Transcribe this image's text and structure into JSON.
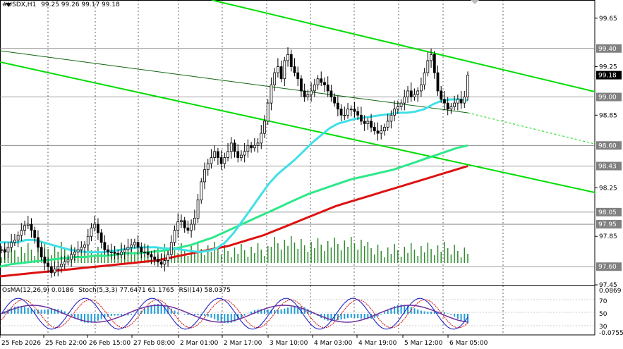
{
  "header": {
    "symbol": "#USDX,H1",
    "ohlc": "99.25 99.26 99.17 99.18"
  },
  "indicator_header": {
    "osma": "OsMA(12,26,9) 0.0186",
    "stoch": "Stoch(5,3,3) 77.6471 61.1765",
    "rsi": "RSI(14) 58.0375"
  },
  "colors": {
    "candle": "#000000",
    "volume": "#2e8b2e",
    "channel": "#00dd00",
    "ema_cyan": "#40e0e8",
    "ema_green": "#2ee88a",
    "ema_red": "#dd1111",
    "grid": "#000000",
    "osma": "#1e9bd7",
    "stoch_main": "#1010c0",
    "stoch_signal": "#d01010",
    "rsi": "#7030a0"
  },
  "chart_data": {
    "type": "candlestick",
    "title": "#USDX,H1",
    "x_tick_labels": [
      "25 Feb 2026",
      "25 Feb 22:00",
      "26 Feb 15:00",
      "27 Feb 08:00",
      "2 Mar 01:00",
      "2 Mar 17:00",
      "3 Mar 10:00",
      "4 Mar 03:00",
      "4 Mar 19:00",
      "5 Mar 12:00",
      "6 Mar 05:00"
    ],
    "y_tick_labels": [
      "99.65",
      "99.40",
      "99.25",
      "99.18",
      "99.00",
      "98.85",
      "98.60",
      "98.43",
      "98.25",
      "98.05",
      "97.95",
      "97.85",
      "97.60",
      "97.45"
    ],
    "price_labels": [
      {
        "value": 99.4,
        "text": "99.40",
        "color": "#808080"
      },
      {
        "value": 99.18,
        "text": "99.18",
        "color": "#000000"
      },
      {
        "value": 99.0,
        "text": "99.00",
        "color": "#808080"
      },
      {
        "value": 98.6,
        "text": "98.60",
        "color": "#808080"
      },
      {
        "value": 98.43,
        "text": "98.43",
        "color": "#808080"
      },
      {
        "value": 98.05,
        "text": "98.05",
        "color": "#808080"
      },
      {
        "value": 97.95,
        "text": "97.95",
        "color": "#808080"
      },
      {
        "value": 97.6,
        "text": "97.60",
        "color": "#808080"
      }
    ],
    "horizontal_levels": [
      99.4,
      99.0,
      98.6,
      98.43,
      98.05,
      97.95,
      97.6
    ],
    "ylim": [
      97.45,
      99.8
    ],
    "candles_close": [
      97.74,
      97.72,
      97.76,
      97.8,
      97.82,
      97.86,
      97.9,
      97.94,
      97.95,
      97.9,
      97.84,
      97.76,
      97.68,
      97.63,
      97.6,
      97.55,
      97.58,
      97.6,
      97.62,
      97.64,
      97.66,
      97.7,
      97.72,
      97.74,
      97.76,
      97.78,
      97.85,
      97.92,
      97.95,
      97.88,
      97.8,
      97.74,
      97.72,
      97.72,
      97.71,
      97.7,
      97.72,
      97.74,
      97.76,
      97.78,
      97.8,
      97.76,
      97.72,
      97.72,
      97.7,
      97.68,
      97.66,
      97.64,
      97.62,
      97.65,
      97.7,
      97.8,
      97.9,
      97.97,
      97.98,
      97.92,
      97.9,
      97.95,
      98.0,
      98.15,
      98.3,
      98.4,
      98.45,
      98.5,
      98.55,
      98.5,
      98.45,
      98.5,
      98.55,
      98.62,
      98.55,
      98.5,
      98.52,
      98.55,
      98.6,
      98.58,
      98.6,
      98.62,
      98.7,
      98.8,
      98.95,
      99.1,
      99.2,
      99.25,
      99.15,
      99.3,
      99.35,
      99.25,
      99.2,
      99.15,
      99.05,
      99.0,
      99.02,
      99.05,
      99.1,
      99.15,
      99.12,
      99.1,
      99.05,
      99.0,
      98.95,
      98.9,
      98.85,
      98.85,
      98.9,
      98.9,
      98.88,
      98.85,
      98.8,
      98.78,
      98.8,
      98.75,
      98.72,
      98.7,
      98.72,
      98.75,
      98.8,
      98.85,
      98.9,
      98.92,
      98.95,
      99.0,
      99.05,
      99.0,
      99.02,
      99.05,
      99.1,
      99.2,
      99.3,
      99.35,
      99.2,
      99.05,
      98.98,
      98.95,
      98.9,
      98.92,
      98.95,
      98.98,
      98.95,
      99.0,
      99.18
    ],
    "series": [
      {
        "name": "EMA cyan",
        "values": [
          97.8,
          97.8,
          97.8,
          97.82,
          97.82,
          97.8,
          97.78,
          97.76,
          97.74,
          97.73,
          97.72,
          97.72,
          97.72,
          97.73,
          97.74,
          97.75,
          97.76,
          97.76,
          97.76,
          97.75,
          97.75,
          97.74,
          97.73,
          97.72,
          97.73,
          97.75,
          97.8,
          97.88,
          97.98,
          98.08,
          98.18,
          98.28,
          98.36,
          98.42,
          98.48,
          98.55,
          98.62,
          98.68,
          98.74,
          98.78,
          98.8,
          98.82,
          98.83,
          98.84,
          98.85,
          98.86,
          98.87,
          98.87,
          98.88,
          98.9,
          98.94,
          98.97,
          98.98,
          98.98,
          98.97
        ]
      },
      {
        "name": "EMA green",
        "values": [
          97.6,
          97.62,
          97.63,
          97.64,
          97.65,
          97.66,
          97.67,
          97.68,
          97.68,
          97.69,
          97.69,
          97.7,
          97.71,
          97.71,
          97.72,
          97.73,
          97.74,
          97.76,
          97.78,
          97.81,
          97.84,
          97.88,
          97.92,
          97.96,
          98.0,
          98.04,
          98.08,
          98.12,
          98.16,
          98.2,
          98.23,
          98.26,
          98.29,
          98.32,
          98.34,
          98.36,
          98.38,
          98.4,
          98.43,
          98.46,
          98.49,
          98.52,
          98.55,
          98.58,
          98.6
        ]
      },
      {
        "name": "EMA red",
        "values": [
          97.52,
          97.53,
          97.54,
          97.55,
          97.56,
          97.57,
          97.58,
          97.59,
          97.6,
          97.61,
          97.62,
          97.63,
          97.64,
          97.65,
          97.67,
          97.69,
          97.71,
          97.73,
          97.75,
          97.77,
          97.8,
          97.83,
          97.86,
          97.9,
          97.94,
          97.98,
          98.02,
          98.06,
          98.1,
          98.13,
          98.16,
          98.19,
          98.22,
          98.25,
          98.28,
          98.31,
          98.34,
          98.37,
          98.4,
          98.43
        ]
      }
    ],
    "sub_chart": {
      "right_scale_labels": [
        "0.0869",
        "70",
        "50",
        "30",
        "-0.0755"
      ]
    }
  }
}
